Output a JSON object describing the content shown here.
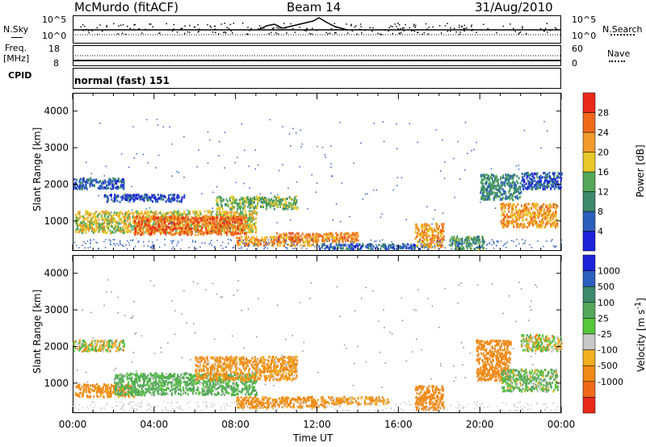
{
  "header": {
    "station": "McMurdo (fitACF)",
    "beam": "Beam 14",
    "date": "31/Aug/2010"
  },
  "noise_panel": {
    "left_label": "N.Sky",
    "right_label": "N.Search",
    "left_ticks": [
      "10^5",
      "10^0"
    ],
    "right_ticks": [
      "10^5",
      "10^0"
    ]
  },
  "freq_panel": {
    "left_label_1": "Freq.",
    "left_label_2": "[MHz]",
    "right_label": "Nave",
    "left_ticks": [
      "18",
      "8"
    ],
    "right_ticks": [
      "60",
      "0"
    ]
  },
  "cpid": {
    "label": "CPID",
    "value": "normal (fast) 151"
  },
  "x_axis": {
    "label": "Time UT",
    "ticks": [
      "00:00",
      "04:00",
      "08:00",
      "12:00",
      "16:00",
      "20:00",
      "00:00"
    ]
  },
  "chart_data": [
    {
      "type": "heatmap",
      "title": "",
      "xlabel": "Time UT",
      "ylabel": "Slant Range [km]",
      "xlim": [
        0,
        24
      ],
      "ylim": [
        180,
        4500
      ],
      "y_ticks": [
        1000,
        2000,
        3000,
        4000
      ],
      "colorbar": {
        "label": "Power [dB]",
        "ticks": [
          "4",
          "8",
          "12",
          "16",
          "20",
          "24",
          "28"
        ],
        "colors": [
          "#1e22d8",
          "#2d5fbe",
          "#3d8a6a",
          "#55a85a",
          "#e8c82a",
          "#f19a2a",
          "#f06a1a",
          "#e82a1a"
        ]
      },
      "echo_regions": [
        {
          "t": [
            0.1,
            9.0
          ],
          "r": [
            700,
            1300
          ],
          "level": 18
        },
        {
          "t": [
            3.0,
            8.5
          ],
          "r": [
            650,
            1150
          ],
          "level": 26
        },
        {
          "t": [
            0.0,
            2.5
          ],
          "r": [
            1900,
            2200
          ],
          "level": 6
        },
        {
          "t": [
            1.5,
            5.5
          ],
          "r": [
            1550,
            1750
          ],
          "level": 5
        },
        {
          "t": [
            7.0,
            11.0
          ],
          "r": [
            1350,
            1700
          ],
          "level": 14
        },
        {
          "t": [
            8.0,
            12.0
          ],
          "r": [
            350,
            600
          ],
          "level": 22
        },
        {
          "t": [
            10.0,
            14.0
          ],
          "r": [
            450,
            700
          ],
          "level": 24
        },
        {
          "t": [
            12.0,
            17.5
          ],
          "r": [
            250,
            400
          ],
          "level": 6
        },
        {
          "t": [
            16.8,
            18.2
          ],
          "r": [
            300,
            950
          ],
          "level": 22
        },
        {
          "t": [
            18.5,
            20.2
          ],
          "r": [
            250,
            600
          ],
          "level": 12
        },
        {
          "t": [
            20.0,
            22.0
          ],
          "r": [
            1600,
            2300
          ],
          "level": 10
        },
        {
          "t": [
            21.0,
            23.8
          ],
          "r": [
            850,
            1500
          ],
          "level": 22
        },
        {
          "t": [
            22.0,
            24.0
          ],
          "r": [
            1900,
            2350
          ],
          "level": 6
        }
      ]
    },
    {
      "type": "heatmap",
      "title": "",
      "xlabel": "Time UT",
      "ylabel": "Slant Range [km]",
      "xlim": [
        0,
        24
      ],
      "ylim": [
        180,
        4500
      ],
      "y_ticks": [
        1000,
        2000,
        3000,
        4000
      ],
      "colorbar": {
        "label": "Velocity [m s^-1]",
        "ticks": [
          "1000",
          "500",
          "100",
          "25",
          "-25",
          "-100",
          "-500",
          "-1000"
        ],
        "colors": [
          "#1e22d8",
          "#2d5fbe",
          "#3d8a6a",
          "#55a85a",
          "#56c63c",
          "#c8c8c8",
          "#f0b020",
          "#f08a18",
          "#f06a1a",
          "#e82a1a"
        ]
      },
      "echo_regions": [
        {
          "t": [
            0.1,
            3.0
          ],
          "r": [
            650,
            1000
          ],
          "level": -200
        },
        {
          "t": [
            2.0,
            9.0
          ],
          "r": [
            700,
            1300
          ],
          "level": 150
        },
        {
          "t": [
            0.0,
            2.5
          ],
          "r": [
            1900,
            2200
          ],
          "level": 0
        },
        {
          "t": [
            6.0,
            11.0
          ],
          "r": [
            1100,
            1750
          ],
          "level": -150
        },
        {
          "t": [
            8.0,
            12.5
          ],
          "r": [
            350,
            650
          ],
          "level": -200
        },
        {
          "t": [
            12.5,
            15.5
          ],
          "r": [
            450,
            650
          ],
          "level": -150
        },
        {
          "t": [
            16.8,
            18.2
          ],
          "r": [
            300,
            950
          ],
          "level": -300
        },
        {
          "t": [
            19.8,
            21.5
          ],
          "r": [
            1100,
            2200
          ],
          "level": -300
        },
        {
          "t": [
            21.0,
            23.8
          ],
          "r": [
            800,
            1400
          ],
          "level": 80
        },
        {
          "t": [
            22.0,
            24.0
          ],
          "r": [
            1900,
            2350
          ],
          "level": 0
        }
      ]
    }
  ]
}
